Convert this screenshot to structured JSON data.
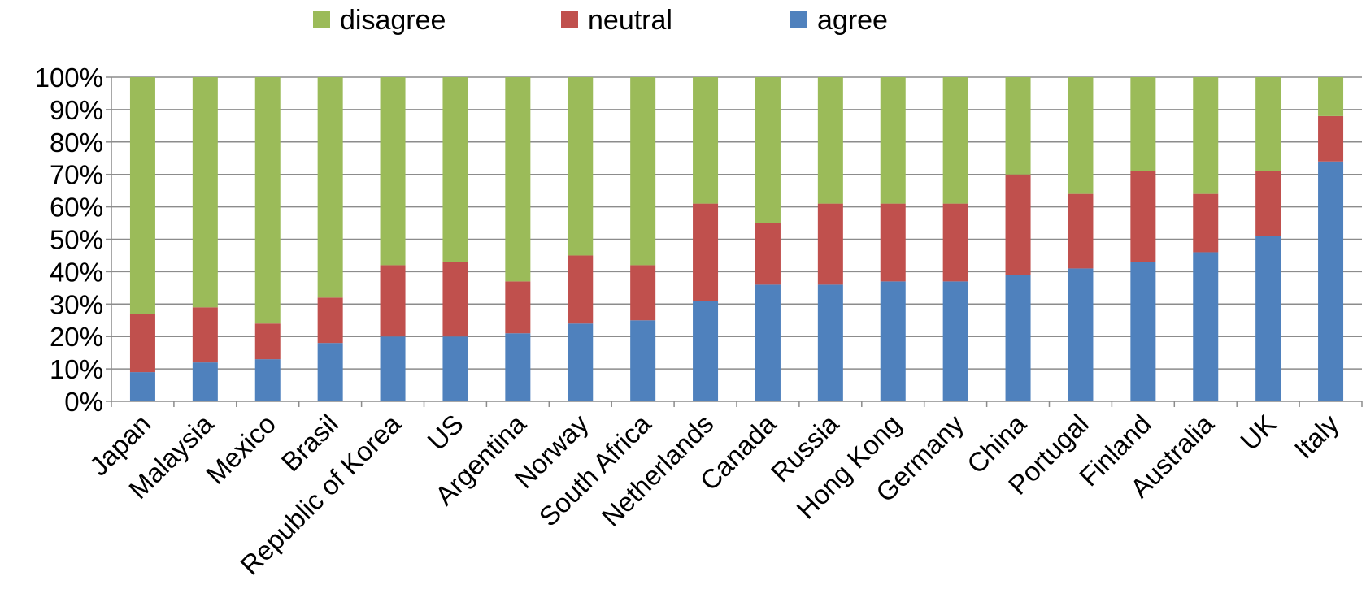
{
  "chart_data": {
    "type": "bar",
    "stacked": true,
    "percent": true,
    "categories": [
      "Japan",
      "Malaysia",
      "Mexico",
      "Brasil",
      "Republic of Korea",
      "US",
      "Argentina",
      "Norway",
      "South Africa",
      "Netherlands",
      "Canada",
      "Russia",
      "Hong Kong",
      "Germany",
      "China",
      "Portugal",
      "Finland",
      "Australia",
      "UK",
      "Italy"
    ],
    "series": [
      {
        "name": "agree",
        "color": "#4F81BD",
        "values": [
          9,
          12,
          13,
          18,
          20,
          20,
          21,
          24,
          25,
          31,
          36,
          36,
          37,
          37,
          39,
          41,
          43,
          46,
          51,
          74
        ]
      },
      {
        "name": "neutral",
        "color": "#C0504D",
        "values": [
          18,
          17,
          11,
          14,
          22,
          23,
          16,
          21,
          17,
          30,
          19,
          25,
          24,
          24,
          31,
          23,
          28,
          18,
          20,
          14
        ]
      },
      {
        "name": "disagree",
        "color": "#9BBB59",
        "values": [
          73,
          71,
          76,
          68,
          58,
          57,
          63,
          55,
          58,
          39,
          45,
          39,
          39,
          39,
          30,
          36,
          29,
          36,
          29,
          12
        ]
      }
    ],
    "legend_order": [
      "disagree",
      "neutral",
      "agree"
    ],
    "legend_position": "top",
    "ylim": [
      0,
      100
    ],
    "yticks": [
      "0%",
      "10%",
      "20%",
      "30%",
      "40%",
      "50%",
      "60%",
      "70%",
      "80%",
      "90%",
      "100%"
    ],
    "grid": true,
    "title": "",
    "xlabel": "",
    "ylabel": ""
  }
}
